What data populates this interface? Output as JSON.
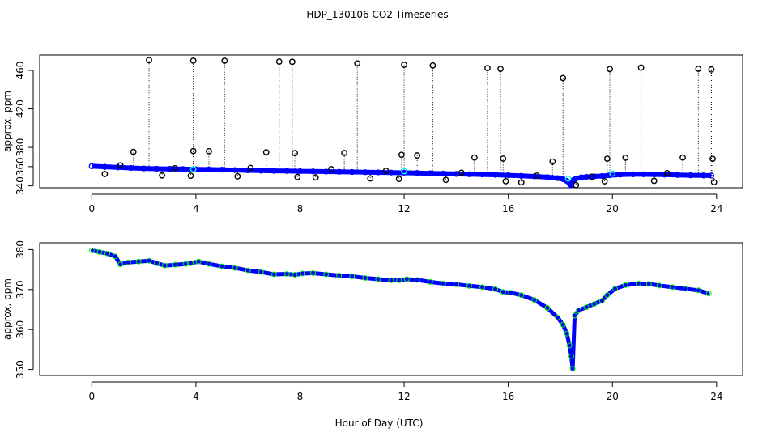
{
  "chart_data": [
    {
      "type": "scatter",
      "title": "HDP_130106  CO2 Timeseries",
      "xlabel": "",
      "ylabel": "approx. ppm",
      "xlim": [
        -2.0,
        25.0
      ],
      "ylim": [
        338,
        476
      ],
      "xticks": [
        0,
        4,
        8,
        12,
        16,
        20,
        24
      ],
      "yticks": [
        340,
        360,
        380,
        420,
        460
      ],
      "series": [
        {
          "name": "raw-timeseries",
          "color": "#0000ff",
          "points": [
            [
              0.0,
              360.4
            ],
            [
              0.5,
              359.8
            ],
            [
              1.0,
              359.2
            ],
            [
              1.5,
              358.6
            ],
            [
              2.0,
              358.1
            ],
            [
              2.5,
              357.8
            ],
            [
              3.0,
              357.6
            ],
            [
              3.5,
              357.4
            ],
            [
              4.0,
              357.2
            ],
            [
              4.5,
              357.0
            ],
            [
              5.0,
              356.8
            ],
            [
              5.5,
              356.4
            ],
            [
              6.0,
              356.1
            ],
            [
              6.5,
              355.8
            ],
            [
              7.0,
              355.6
            ],
            [
              7.5,
              355.4
            ],
            [
              8.0,
              355.2
            ],
            [
              8.5,
              355.0
            ],
            [
              9.0,
              354.8
            ],
            [
              9.5,
              354.6
            ],
            [
              10.0,
              354.4
            ],
            [
              10.5,
              354.2
            ],
            [
              11.0,
              354.0
            ],
            [
              11.5,
              353.8
            ],
            [
              12.0,
              353.6
            ],
            [
              12.5,
              353.3
            ],
            [
              13.0,
              353.0
            ],
            [
              13.5,
              352.7
            ],
            [
              14.0,
              352.4
            ],
            [
              14.5,
              352.1
            ],
            [
              15.0,
              351.8
            ],
            [
              15.5,
              351.5
            ],
            [
              16.0,
              351.0
            ],
            [
              16.5,
              350.4
            ],
            [
              17.0,
              349.8
            ],
            [
              17.5,
              349.0
            ],
            [
              17.9,
              348.0
            ],
            [
              18.1,
              347.0
            ],
            [
              18.25,
              345.0
            ],
            [
              18.35,
              342.5
            ],
            [
              18.42,
              340.5
            ],
            [
              18.5,
              346.0
            ],
            [
              18.6,
              347.5
            ],
            [
              18.8,
              348.8
            ],
            [
              19.0,
              349.3
            ],
            [
              19.3,
              349.8
            ],
            [
              19.6,
              350.2
            ],
            [
              19.9,
              351.0
            ],
            [
              20.3,
              351.6
            ],
            [
              20.8,
              352.0
            ],
            [
              21.2,
              352.0
            ],
            [
              21.6,
              351.8
            ],
            [
              22.0,
              351.6
            ],
            [
              22.5,
              351.3
            ],
            [
              23.0,
              351.0
            ],
            [
              23.5,
              350.8
            ],
            [
              23.8,
              350.6
            ]
          ]
        },
        {
          "name": "spikes",
          "color": "#000000",
          "points": [
            [
              0.5,
              352.3
            ],
            [
              1.1,
              361.3
            ],
            [
              1.6,
              375.3
            ],
            [
              2.2,
              470.7
            ],
            [
              2.7,
              350.8
            ],
            [
              3.2,
              358.3
            ],
            [
              3.8,
              350.5
            ],
            [
              3.9,
              376.2
            ],
            [
              3.9,
              470.2
            ],
            [
              4.5,
              376.0
            ],
            [
              5.1,
              470.1
            ],
            [
              5.6,
              349.9
            ],
            [
              6.1,
              358.6
            ],
            [
              6.7,
              374.9
            ],
            [
              7.2,
              469.2
            ],
            [
              7.7,
              469.0
            ],
            [
              7.8,
              374.1
            ],
            [
              7.9,
              349.2
            ],
            [
              8.6,
              348.7
            ],
            [
              9.2,
              357.3
            ],
            [
              9.7,
              374.2
            ],
            [
              10.2,
              467.4
            ],
            [
              10.7,
              347.7
            ],
            [
              11.3,
              355.7
            ],
            [
              11.8,
              347.2
            ],
            [
              11.9,
              372.3
            ],
            [
              12.0,
              465.9
            ],
            [
              12.5,
              371.6
            ],
            [
              13.1,
              465.2
            ],
            [
              13.6,
              346.2
            ],
            [
              14.2,
              353.7
            ],
            [
              14.7,
              369.4
            ],
            [
              15.2,
              462.4
            ],
            [
              15.7,
              461.6
            ],
            [
              15.8,
              368.3
            ],
            [
              15.9,
              344.8
            ],
            [
              16.5,
              343.6
            ],
            [
              17.1,
              350.6
            ],
            [
              17.7,
              365.2
            ],
            [
              18.1,
              452.0
            ],
            [
              18.6,
              340.8
            ],
            [
              19.2,
              349.4
            ],
            [
              19.7,
              344.7
            ],
            [
              19.8,
              368.2
            ],
            [
              19.9,
              461.4
            ],
            [
              20.5,
              369.2
            ],
            [
              21.1,
              462.9
            ],
            [
              21.6,
              345.2
            ],
            [
              22.1,
              353.2
            ],
            [
              22.7,
              369.4
            ],
            [
              23.3,
              461.7
            ],
            [
              23.8,
              461.0
            ],
            [
              23.85,
              368.1
            ],
            [
              23.9,
              343.8
            ]
          ]
        },
        {
          "name": "flagged",
          "color": "#00ffff",
          "points": [
            [
              3.9,
              357.3
            ],
            [
              12.0,
              355.2
            ],
            [
              18.3,
              347.6
            ],
            [
              20.0,
              352.7
            ]
          ]
        }
      ]
    },
    {
      "type": "scatter",
      "title": "",
      "xlabel": "Hour of Day (UTC)",
      "ylabel": "approx. ppm",
      "xlim": [
        -2.0,
        25.0
      ],
      "ylim": [
        348.5,
        381.7
      ],
      "xticks": [
        0,
        4,
        8,
        12,
        16,
        20,
        24
      ],
      "yticks": [
        350,
        360,
        370,
        380
      ],
      "series": [
        {
          "name": "filtered-timeseries",
          "color": "#0000ff",
          "secondary_color": "#00ff00",
          "points": [
            [
              0.0,
              379.8
            ],
            [
              0.3,
              379.4
            ],
            [
              0.6,
              379.0
            ],
            [
              0.9,
              378.3
            ],
            [
              1.1,
              376.3
            ],
            [
              1.4,
              376.8
            ],
            [
              1.8,
              377.0
            ],
            [
              2.2,
              377.2
            ],
            [
              2.5,
              376.6
            ],
            [
              2.8,
              376.0
            ],
            [
              3.2,
              376.2
            ],
            [
              3.6,
              376.4
            ],
            [
              3.8,
              376.6
            ],
            [
              4.1,
              377.0
            ],
            [
              4.5,
              376.4
            ],
            [
              5.0,
              375.8
            ],
            [
              5.5,
              375.4
            ],
            [
              6.0,
              374.8
            ],
            [
              6.5,
              374.4
            ],
            [
              7.0,
              373.8
            ],
            [
              7.5,
              373.9
            ],
            [
              7.8,
              373.7
            ],
            [
              8.1,
              374.0
            ],
            [
              8.5,
              374.1
            ],
            [
              9.0,
              373.8
            ],
            [
              9.5,
              373.5
            ],
            [
              10.0,
              373.3
            ],
            [
              10.5,
              372.9
            ],
            [
              11.0,
              372.6
            ],
            [
              11.5,
              372.3
            ],
            [
              11.8,
              372.3
            ],
            [
              12.1,
              372.6
            ],
            [
              12.5,
              372.4
            ],
            [
              13.0,
              371.9
            ],
            [
              13.5,
              371.5
            ],
            [
              14.0,
              371.3
            ],
            [
              14.5,
              370.9
            ],
            [
              15.0,
              370.6
            ],
            [
              15.5,
              370.1
            ],
            [
              15.8,
              369.4
            ],
            [
              16.1,
              369.2
            ],
            [
              16.5,
              368.6
            ],
            [
              17.0,
              367.4
            ],
            [
              17.5,
              365.4
            ],
            [
              17.9,
              363.0
            ],
            [
              18.1,
              361.2
            ],
            [
              18.25,
              359.0
            ],
            [
              18.35,
              356.0
            ],
            [
              18.42,
              353.3
            ],
            [
              18.47,
              350.2
            ],
            [
              18.55,
              363.5
            ],
            [
              18.7,
              364.8
            ],
            [
              19.0,
              365.6
            ],
            [
              19.3,
              366.4
            ],
            [
              19.6,
              367.2
            ],
            [
              19.8,
              368.6
            ],
            [
              20.1,
              370.2
            ],
            [
              20.5,
              371.1
            ],
            [
              21.0,
              371.5
            ],
            [
              21.4,
              371.4
            ],
            [
              21.8,
              371.0
            ],
            [
              22.3,
              370.6
            ],
            [
              22.8,
              370.2
            ],
            [
              23.3,
              369.8
            ],
            [
              23.7,
              369.0
            ]
          ]
        }
      ]
    }
  ]
}
